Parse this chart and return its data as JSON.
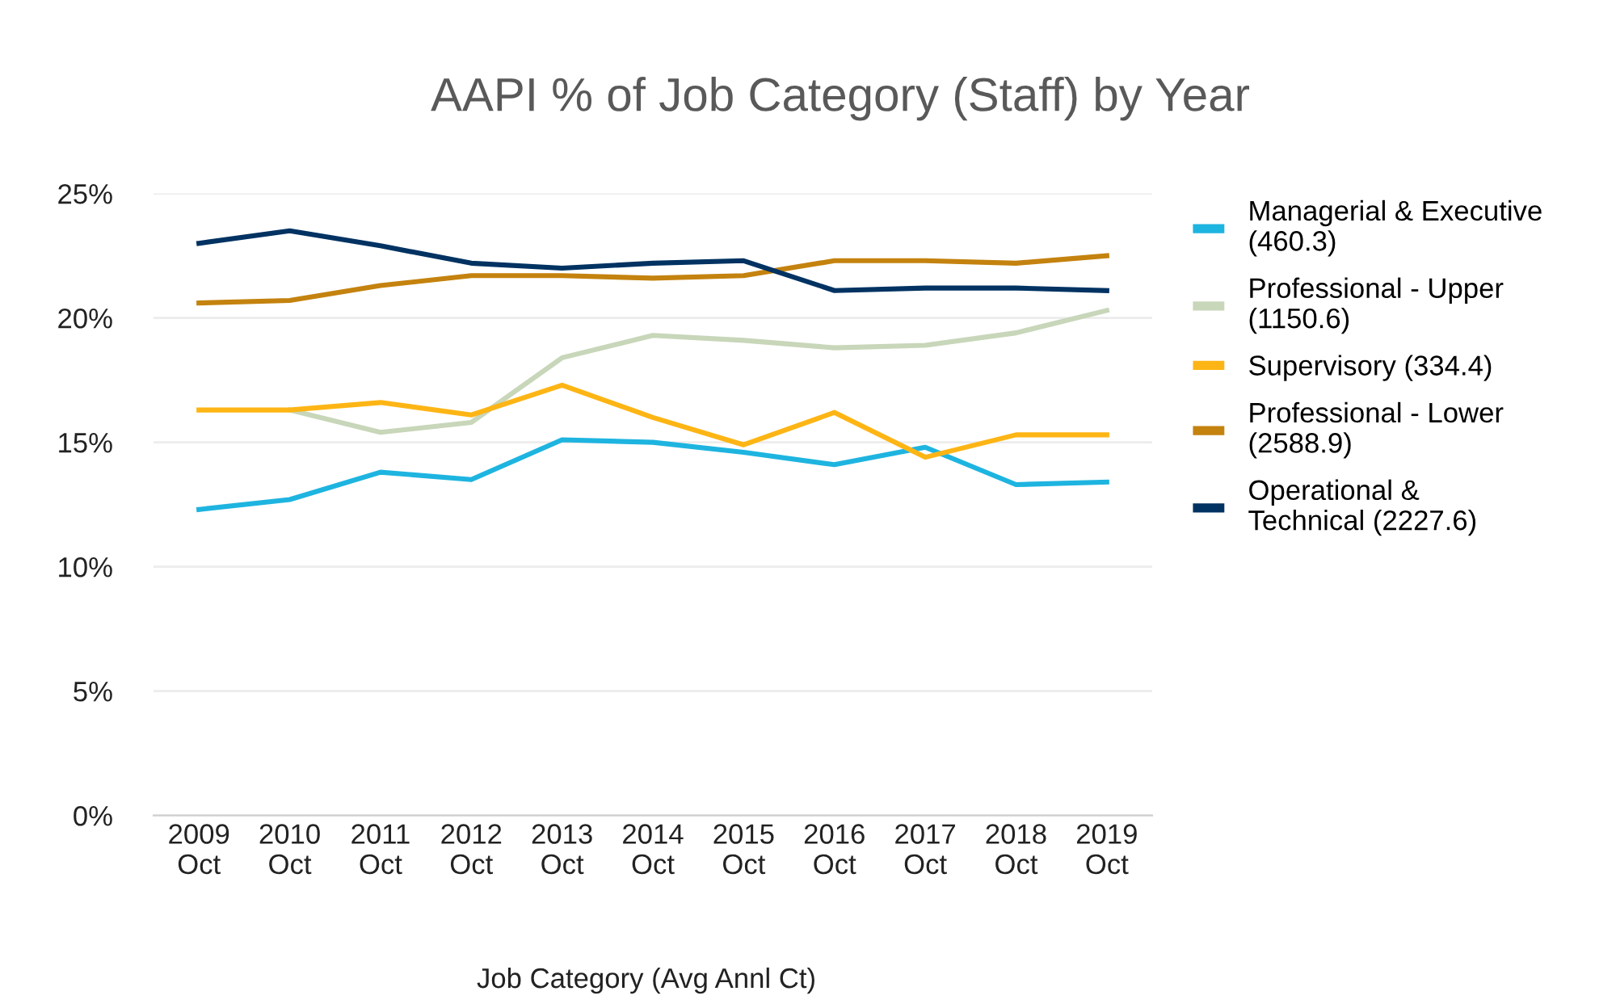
{
  "chart_data": {
    "type": "line",
    "title": "AAPI % of Job Category (Staff) by Year",
    "xlabel": "Job Category (Avg Annl Ct)",
    "categories": [
      "2009\nOct",
      "2010\nOct",
      "2011\nOct",
      "2012\nOct",
      "2013\nOct",
      "2014\nOct",
      "2015\nOct",
      "2016\nOct",
      "2017\nOct",
      "2018\nOct",
      "2019\nOct"
    ],
    "series": [
      {
        "name": "Managerial & Executive\n(460.3)",
        "color": "#1eb4e0",
        "values": [
          12.3,
          12.7,
          13.8,
          13.5,
          15.1,
          15.0,
          14.6,
          14.1,
          14.8,
          13.3,
          13.4
        ]
      },
      {
        "name": "Professional - Upper\n(1150.6)",
        "color": "#c8d6b9",
        "values": [
          null,
          16.3,
          15.4,
          15.8,
          18.4,
          19.3,
          19.1,
          18.8,
          18.9,
          19.4,
          20.3
        ]
      },
      {
        "name": "Supervisory (334.4)",
        "color": "#fdb515",
        "values": [
          16.3,
          16.3,
          16.6,
          16.1,
          17.3,
          16.0,
          14.9,
          16.2,
          14.4,
          15.3,
          15.3
        ]
      },
      {
        "name": "Professional - Lower\n(2588.9)",
        "color": "#c4820e",
        "values": [
          20.6,
          20.7,
          21.3,
          21.7,
          21.7,
          21.6,
          21.7,
          22.3,
          22.3,
          22.2,
          22.5
        ]
      },
      {
        "name": "Operational &\nTechnical (2227.6)",
        "color": "#003262",
        "values": [
          23.0,
          23.5,
          22.9,
          22.2,
          22.0,
          22.2,
          22.3,
          21.1,
          21.2,
          21.2,
          21.1
        ]
      }
    ],
    "ylim": [
      0,
      25
    ],
    "yticks": [
      {
        "value": 0,
        "label": "0%"
      },
      {
        "value": 5,
        "label": "5%"
      },
      {
        "value": 10,
        "label": "10%"
      },
      {
        "value": 15,
        "label": "15%"
      },
      {
        "value": 20,
        "label": "20%"
      },
      {
        "value": 25,
        "label": "25%"
      }
    ],
    "grid": "y",
    "legend": "right",
    "marker": "none",
    "line_style": "solid"
  }
}
